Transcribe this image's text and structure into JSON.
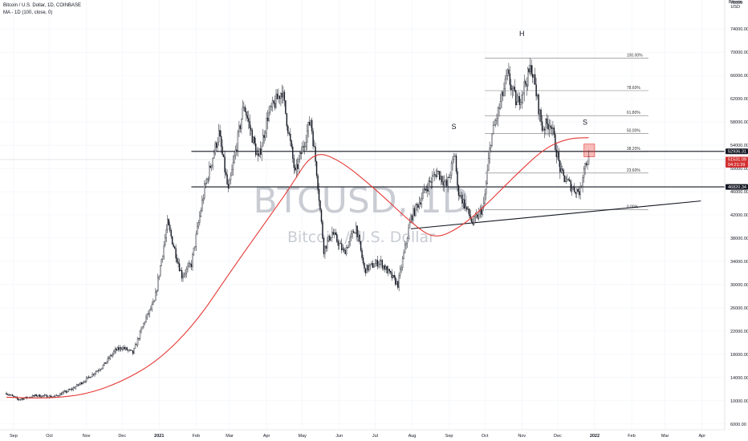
{
  "header": {
    "title": "Bitcoin / U.S. Dollar, 1D, COINBASE",
    "indicator": "MA - 1D (100, close, 0)"
  },
  "axis": {
    "currency_label": "Bitcoin\nUSD",
    "price_ticks": [
      6000,
      10000,
      14000,
      18000,
      22000,
      26000,
      30000,
      34000,
      38000,
      42000,
      46000,
      50000,
      54000,
      58000,
      62000,
      66000,
      70000,
      74000
    ],
    "top_tick": "78000",
    "date_ticks": [
      "Sep",
      "Oct",
      "Nov",
      "Dec",
      "2021",
      "Feb",
      "Mar",
      "Apr",
      "May",
      "Jun",
      "Jul",
      "Aug",
      "Sep",
      "Oct",
      "Nov",
      "Dec",
      "2022",
      "Feb",
      "Mar",
      "Apr"
    ]
  },
  "watermark": {
    "symbol": "BTCUSD, 1D",
    "name": "Bitcoin / U.S. Dollar"
  },
  "price_tags": [
    {
      "label": "52936.31",
      "value": 52936.31,
      "color": "#131722"
    },
    {
      "label": "51531.09",
      "value": 51531.09,
      "color": "#d32f2f"
    },
    {
      "label": "04:21:39",
      "value": 51000,
      "color": "#d32f2f"
    },
    {
      "label": "46820.34",
      "value": 46820.34,
      "color": "#131722"
    }
  ],
  "fib_levels": [
    {
      "label": "100.00%",
      "price": 69000
    },
    {
      "label": "78.60%",
      "price": 63400
    },
    {
      "label": "61.80%",
      "price": 59100
    },
    {
      "label": "50.00%",
      "price": 56000
    },
    {
      "label": "38.20%",
      "price": 52900
    },
    {
      "label": "23.60%",
      "price": 49200
    },
    {
      "label": "0.00%",
      "price": 42900
    }
  ],
  "pattern_labels": [
    {
      "text": "S",
      "date": "2021-09-05",
      "price": 56800
    },
    {
      "text": "H",
      "date": "2021-11-01",
      "price": 72800
    },
    {
      "text": "S",
      "date": "2021-12-24",
      "price": 57500
    }
  ],
  "levels": {
    "resistance": 52936.31,
    "support": 46820.34
  },
  "colors": {
    "up": "#131722",
    "down": "#131722",
    "ma": "#e53935",
    "bg": "#ffffff",
    "grid": "#f0f3fa"
  },
  "chart_data": {
    "type": "line",
    "title": "Bitcoin / U.S. Dollar, 1D, COINBASE",
    "y_range": [
      5000,
      79000
    ],
    "x_range": [
      "2020-08-26",
      "2022-04-20"
    ],
    "series": [
      {
        "name": "close",
        "points": [
          [
            "2020-08-26",
            11300
          ],
          [
            "2020-09-05",
            10200
          ],
          [
            "2020-09-20",
            10900
          ],
          [
            "2020-10-05",
            10700
          ],
          [
            "2020-10-20",
            12000
          ],
          [
            "2020-11-01",
            13700
          ],
          [
            "2020-11-15",
            16000
          ],
          [
            "2020-11-25",
            18600
          ],
          [
            "2020-12-01",
            19200
          ],
          [
            "2020-12-10",
            18200
          ],
          [
            "2020-12-20",
            23800
          ],
          [
            "2020-12-28",
            27000
          ],
          [
            "2021-01-08",
            40500
          ],
          [
            "2021-01-20",
            31500
          ],
          [
            "2021-01-28",
            33500
          ],
          [
            "2021-02-08",
            46500
          ],
          [
            "2021-02-20",
            56000
          ],
          [
            "2021-02-28",
            46000
          ],
          [
            "2021-03-13",
            61000
          ],
          [
            "2021-03-25",
            51500
          ],
          [
            "2021-04-02",
            59000
          ],
          [
            "2021-04-14",
            63500
          ],
          [
            "2021-04-25",
            49000
          ],
          [
            "2021-05-08",
            58500
          ],
          [
            "2021-05-13",
            49500
          ],
          [
            "2021-05-19",
            36000
          ],
          [
            "2021-05-26",
            39000
          ],
          [
            "2021-06-05",
            35500
          ],
          [
            "2021-06-15",
            40000
          ],
          [
            "2021-06-22",
            32500
          ],
          [
            "2021-07-05",
            34000
          ],
          [
            "2021-07-20",
            30000
          ],
          [
            "2021-07-31",
            41500
          ],
          [
            "2021-08-14",
            47000
          ],
          [
            "2021-08-22",
            49500
          ],
          [
            "2021-08-30",
            47000
          ],
          [
            "2021-09-06",
            52500
          ],
          [
            "2021-09-08",
            46500
          ],
          [
            "2021-09-21",
            40500
          ],
          [
            "2021-09-30",
            43500
          ],
          [
            "2021-10-06",
            55000
          ],
          [
            "2021-10-15",
            62000
          ],
          [
            "2021-10-20",
            66000
          ],
          [
            "2021-10-28",
            61000
          ],
          [
            "2021-11-09",
            67500
          ],
          [
            "2021-11-18",
            57000
          ],
          [
            "2021-11-25",
            58000
          ],
          [
            "2021-12-04",
            49000
          ],
          [
            "2021-12-10",
            47500
          ],
          [
            "2021-12-14",
            46500
          ],
          [
            "2021-12-20",
            46000
          ],
          [
            "2021-12-23",
            50500
          ],
          [
            "2021-12-27",
            51531
          ]
        ]
      },
      {
        "name": "MA - 1D (100, close, 0)",
        "points": [
          [
            "2020-08-26",
            10600
          ],
          [
            "2020-10-01",
            10400
          ],
          [
            "2020-11-01",
            11100
          ],
          [
            "2020-12-01",
            13300
          ],
          [
            "2021-01-01",
            17000
          ],
          [
            "2021-02-01",
            23500
          ],
          [
            "2021-03-01",
            32000
          ],
          [
            "2021-04-01",
            41000
          ],
          [
            "2021-04-20",
            46500
          ],
          [
            "2021-05-10",
            53000
          ],
          [
            "2021-06-01",
            51500
          ],
          [
            "2021-07-01",
            46500
          ],
          [
            "2021-08-01",
            40500
          ],
          [
            "2021-08-20",
            37800
          ],
          [
            "2021-09-10",
            39800
          ],
          [
            "2021-10-01",
            43500
          ],
          [
            "2021-10-25",
            48500
          ],
          [
            "2021-11-20",
            53500
          ],
          [
            "2021-12-10",
            55200
          ],
          [
            "2021-12-27",
            55300
          ]
        ]
      }
    ],
    "annotations": {
      "trendline": [
        [
          "2021-07-31",
          39600
        ],
        [
          "2022-03-31",
          44400
        ]
      ],
      "box": {
        "from": [
          "2021-12-23",
          52000
        ],
        "to": [
          "2022-01-01",
          54200
        ]
      }
    }
  }
}
